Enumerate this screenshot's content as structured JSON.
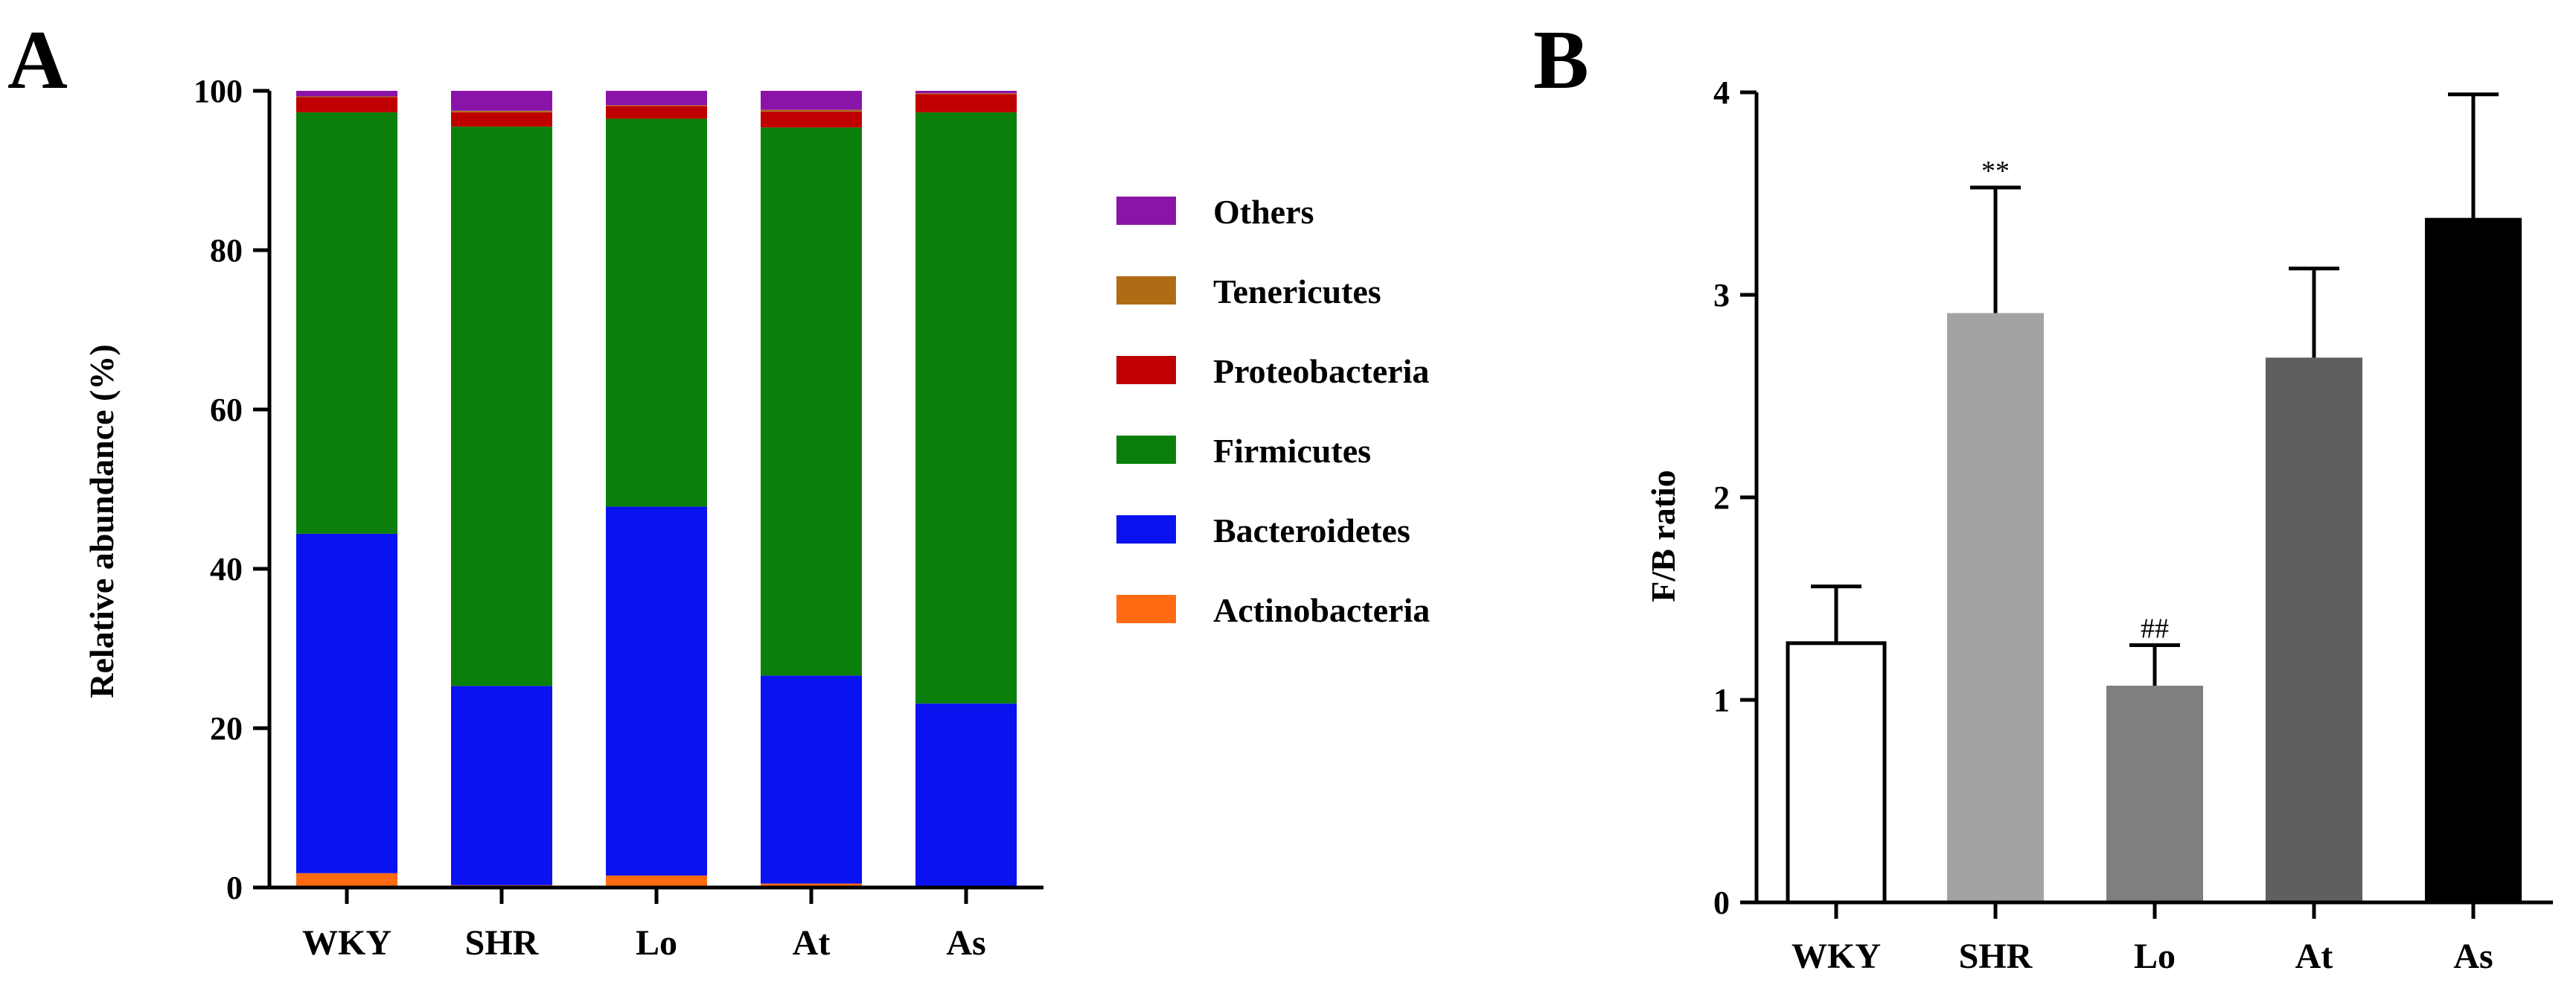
{
  "panels": {
    "a_label": "A",
    "b_label": "B"
  },
  "chart_data": [
    {
      "type": "bar",
      "stacked": true,
      "panel": "A",
      "title": "",
      "xlabel": "",
      "ylabel": "Relative abundance (%)",
      "ylim": [
        0,
        100
      ],
      "yticks": [
        "0",
        "20",
        "40",
        "60",
        "80",
        "100"
      ],
      "categories": [
        "WKY",
        "SHR",
        "Lo",
        "At",
        "As"
      ],
      "series": [
        {
          "name": "Actinobacteria",
          "color": "#FF6A13",
          "values": [
            1.8,
            0.3,
            1.5,
            0.5,
            0.2
          ]
        },
        {
          "name": "Bacteroidetes",
          "color": "#0A12F0",
          "values": [
            42.6,
            25.0,
            46.3,
            26.1,
            22.9
          ]
        },
        {
          "name": "Firmicutes",
          "color": "#0A800A",
          "values": [
            52.9,
            70.2,
            48.7,
            68.8,
            74.2
          ]
        },
        {
          "name": "Proteobacteria",
          "color": "#C00000",
          "values": [
            1.9,
            1.8,
            1.6,
            2.0,
            2.3
          ]
        },
        {
          "name": "Tenericutes",
          "color": "#B06C14",
          "values": [
            0.1,
            0.2,
            0.1,
            0.2,
            0.1
          ]
        },
        {
          "name": "Others",
          "color": "#8B14A8",
          "values": [
            0.7,
            2.5,
            1.8,
            2.4,
            0.3
          ]
        }
      ],
      "legend": [
        "Others",
        "Tenericutes",
        "Proteobacteria",
        "Firmicutes",
        "Bacteroidetes",
        "Actinobacteria"
      ],
      "legend_position": "right"
    },
    {
      "type": "bar",
      "panel": "B",
      "title": "",
      "xlabel": "",
      "ylabel": "F/B ratio",
      "ylim": [
        0,
        4
      ],
      "yticks": [
        "0",
        "1",
        "2",
        "3",
        "4"
      ],
      "categories": [
        "WKY",
        "SHR",
        "Lo",
        "At",
        "As"
      ],
      "values": [
        1.28,
        2.91,
        1.07,
        2.69,
        3.38
      ],
      "errors": [
        0.28,
        0.62,
        0.2,
        0.44,
        0.61
      ],
      "colors": [
        "#FFFFFF",
        "#A3A3A6",
        "#7F7F7F",
        "#5F5F5F",
        "#000000"
      ],
      "annotations": [
        "",
        "**",
        "##",
        "",
        ""
      ]
    }
  ]
}
